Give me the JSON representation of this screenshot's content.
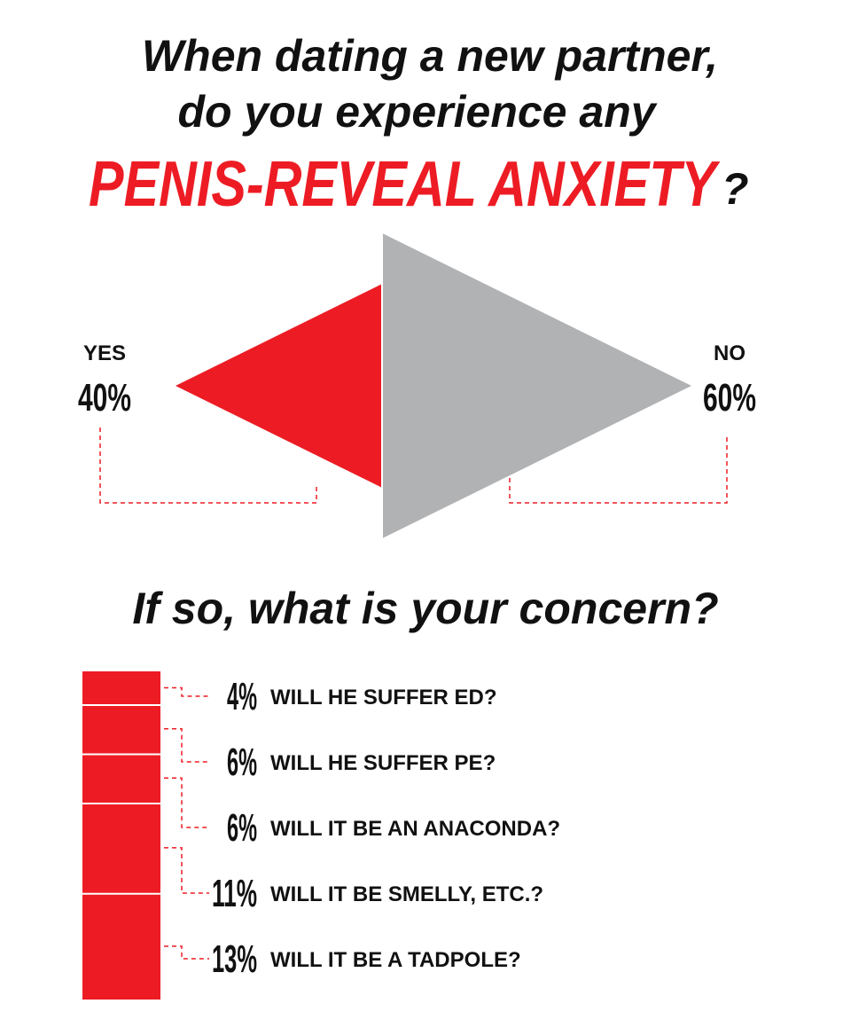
{
  "chart_data": [
    {
      "type": "triangle",
      "title_lines": [
        "When dating a new partner,",
        "do you experience any"
      ],
      "title_highlight": "PENIS-REVEAL ANXIETY",
      "title_end": "?",
      "categories": [
        "YES",
        "NO"
      ],
      "values": [
        40,
        60
      ],
      "value_labels": [
        "40%",
        "60%"
      ],
      "colors": [
        "#ed1c24",
        "#b1b2b4"
      ]
    },
    {
      "type": "stacked-bar",
      "title": "If so, what is your concern?",
      "categories": [
        "WILL HE SUFFER ED?",
        "WILL HE SUFFER PE?",
        "WILL IT BE AN ANACONDA?",
        "WILL IT BE SMELLY, ETC.?",
        "WILL IT BE A TADPOLE?"
      ],
      "values": [
        4,
        6,
        6,
        11,
        13
      ],
      "value_labels": [
        "4%",
        "6%",
        "6%",
        "11%",
        "13%"
      ],
      "color": "#ed1c24"
    }
  ]
}
